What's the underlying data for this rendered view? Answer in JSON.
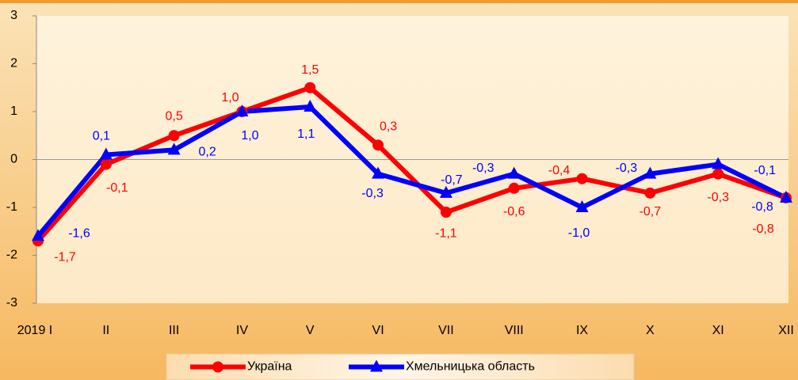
{
  "chart_data": {
    "type": "line",
    "categories": [
      "2019 I",
      "II",
      "III",
      "IV",
      "V",
      "VI",
      "VII",
      "VIII",
      "IX",
      "X",
      "XI",
      "XII"
    ],
    "series": [
      {
        "name": "Україна",
        "color": "#ff0000",
        "marker": "circle",
        "values": [
          -1.7,
          -0.1,
          0.5,
          1.0,
          1.5,
          0.3,
          -1.1,
          -0.6,
          -0.4,
          -0.7,
          -0.3,
          -0.8
        ],
        "value_labels": [
          "-1,7",
          "-0,1",
          "0,5",
          "1,0",
          "1,5",
          "0,3",
          "-1,1",
          "-0,6",
          "-0,4",
          "-0,7",
          "-0,3",
          "-0,8"
        ]
      },
      {
        "name": "Хмельницька область",
        "color": "#0000ff",
        "marker": "triangle",
        "values": [
          -1.6,
          0.1,
          0.2,
          1.0,
          1.1,
          -0.3,
          -0.7,
          -0.3,
          -1.0,
          -0.3,
          -0.1,
          -0.8
        ],
        "value_labels": [
          "-1,6",
          "0,1",
          "0,2",
          "1,0",
          "1,1",
          "-0,3",
          "-0,7",
          "-0,3",
          "-1,0",
          "-0,3",
          "-0,1",
          "-0,8"
        ]
      }
    ],
    "ylim": [
      -3,
      3
    ],
    "yticks": [
      -3,
      -2,
      -1,
      0,
      1,
      2,
      3
    ],
    "grid": false,
    "legend": "bottom"
  }
}
